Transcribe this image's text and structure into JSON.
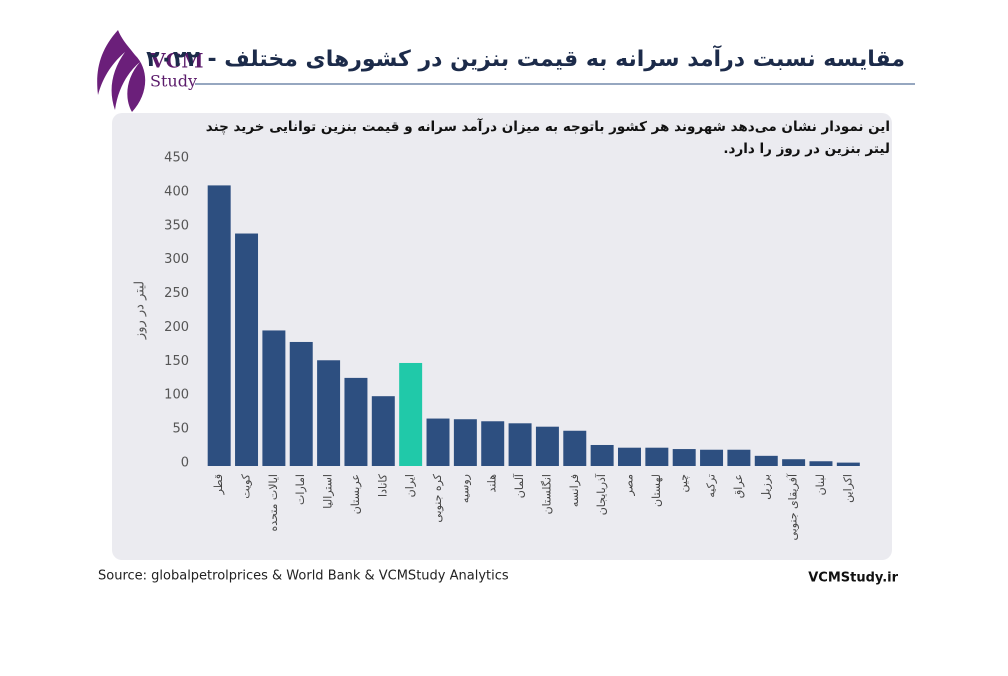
{
  "logo": {
    "line1": "VCM",
    "line2": "Study"
  },
  "chart_data": {
    "type": "bar",
    "title": "مقایسه نسبت درآمد سرانه به قیمت بنزین در کشورهای مختلف - ۲۰۲۲",
    "subtitle": "این نمودار نشان می‌دهد شهروند هر کشور باتوجه به میزان درآمد سرانه و قیمت بنزین توانایی خرید چند لیتر بنزین در روز را دارد.",
    "y_label": "لیتر در روز",
    "source": "Source:  globalpetrolprices  & World  Bank & VCMStudy Analytics",
    "brand": "VCMStudy.ir",
    "categories": [
      "قطر",
      "کویت",
      "ایالات متحده",
      "امارات",
      "استرالیا",
      "عربستان",
      "کانادا",
      "ایران",
      "کره جنوبی",
      "روسیه",
      "هلند",
      "آلمان",
      "انگلستان",
      "فرانسه",
      "آذربایجان",
      "مصر",
      "لهستان",
      "چین",
      "ترکیه",
      "عراق",
      "برزیل",
      "آفریقای جنوبی",
      "لبنان",
      "اکراین"
    ],
    "values": [
      414,
      343,
      200,
      183,
      156,
      130,
      103,
      152,
      70,
      69,
      66,
      63,
      58,
      52,
      31,
      27,
      27,
      25,
      24,
      24,
      15,
      10,
      7,
      5
    ],
    "colors": [
      "#2d4f80",
      "#2d4f80",
      "#2d4f80",
      "#2d4f80",
      "#2d4f80",
      "#2d4f80",
      "#2d4f80",
      "#20c9a9",
      "#2d4f80",
      "#2d4f80",
      "#2d4f80",
      "#2d4f80",
      "#2d4f80",
      "#2d4f80",
      "#2d4f80",
      "#2d4f80",
      "#2d4f80",
      "#2d4f80",
      "#2d4f80",
      "#2d4f80",
      "#2d4f80",
      "#2d4f80",
      "#2d4f80",
      "#2d4f80"
    ],
    "ylim": [
      0,
      450
    ],
    "yticks": [
      0,
      50,
      100,
      150,
      200,
      250,
      300,
      350,
      400,
      450
    ],
    "grid": false
  }
}
